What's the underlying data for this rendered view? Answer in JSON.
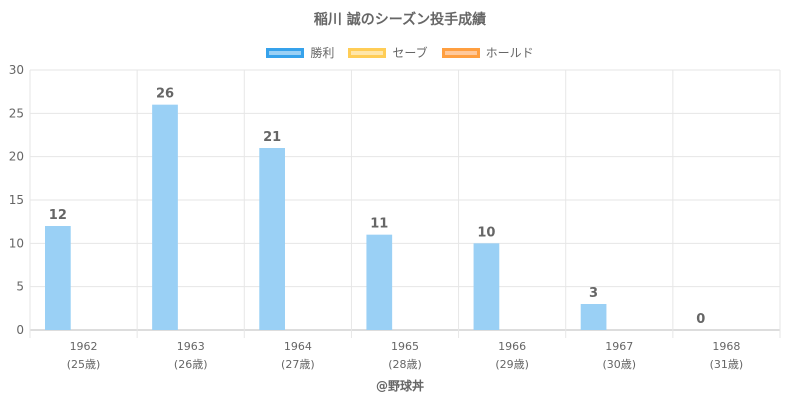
{
  "chart_data": {
    "type": "bar",
    "title": "稲川 誠のシーズン投手成績",
    "categories": [
      "1962",
      "1963",
      "1964",
      "1965",
      "1966",
      "1967",
      "1968"
    ],
    "sublabels": [
      "(25歳)",
      "(26歳)",
      "(27歳)",
      "(28歳)",
      "(29歳)",
      "(30歳)",
      "(31歳)"
    ],
    "series": [
      {
        "name": "勝利",
        "values": [
          12,
          26,
          21,
          11,
          10,
          3,
          0
        ],
        "fill": "#9ad0f5",
        "stroke": "#36a2eb"
      },
      {
        "name": "セーブ",
        "values": [
          0,
          0,
          0,
          0,
          0,
          0,
          0
        ],
        "fill": "#ffe6aa",
        "stroke": "#ffcd56"
      },
      {
        "name": "ホールド",
        "values": [
          0,
          0,
          0,
          0,
          0,
          0,
          0
        ],
        "fill": "#ffc89a",
        "stroke": "#ff9f40"
      }
    ],
    "data_labels": [
      "12",
      "26",
      "21",
      "11",
      "10",
      "3",
      "0"
    ],
    "y_ticks": [
      "0",
      "5",
      "10",
      "15",
      "20",
      "25",
      "30"
    ],
    "ylim": [
      0,
      30
    ],
    "grid": true,
    "legend_position": "top"
  },
  "credit": "@野球丼"
}
